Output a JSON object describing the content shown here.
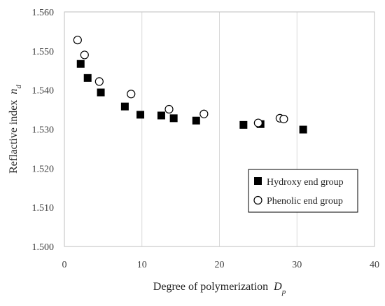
{
  "chart_data": {
    "type": "scatter",
    "title": "",
    "xlabel": "Degree of polymerization",
    "xlabel_sub": "p",
    "xlabel_var": "D",
    "ylabel": "Reflactive index",
    "ylabel_var": "n",
    "ylabel_sub": "d",
    "xlim": [
      0,
      40
    ],
    "ylim": [
      1.5,
      1.56
    ],
    "x_ticks": [
      0,
      10,
      20,
      30,
      40
    ],
    "x_tick_labels": [
      "0",
      "10",
      "20",
      "30",
      "40"
    ],
    "y_ticks": [
      1.5,
      1.51,
      1.52,
      1.53,
      1.54,
      1.55,
      1.56
    ],
    "y_tick_labels": [
      "1.500",
      "1.510",
      "1.520",
      "1.530",
      "1.540",
      "1.550",
      "1.560"
    ],
    "grid": "vertical",
    "legend_position": "bottom-right",
    "series": [
      {
        "name": "Hydroxy end group",
        "marker": "filled-square",
        "color": "#000000",
        "points": [
          {
            "x": 2.1,
            "y": 1.5467
          },
          {
            "x": 3.0,
            "y": 1.5431
          },
          {
            "x": 4.7,
            "y": 1.5394
          },
          {
            "x": 7.8,
            "y": 1.5358
          },
          {
            "x": 9.8,
            "y": 1.5337
          },
          {
            "x": 12.5,
            "y": 1.5335
          },
          {
            "x": 14.1,
            "y": 1.5328
          },
          {
            "x": 17.0,
            "y": 1.5322
          },
          {
            "x": 23.1,
            "y": 1.5311
          },
          {
            "x": 25.3,
            "y": 1.5313
          },
          {
            "x": 30.8,
            "y": 1.5299
          }
        ]
      },
      {
        "name": "Phenolic end group",
        "marker": "open-circle",
        "color": "#000000",
        "points": [
          {
            "x": 1.7,
            "y": 1.5528
          },
          {
            "x": 2.6,
            "y": 1.549
          },
          {
            "x": 4.5,
            "y": 1.5422
          },
          {
            "x": 8.6,
            "y": 1.539
          },
          {
            "x": 13.5,
            "y": 1.5351
          },
          {
            "x": 18.0,
            "y": 1.5339
          },
          {
            "x": 25.0,
            "y": 1.5316
          },
          {
            "x": 27.8,
            "y": 1.5328
          },
          {
            "x": 28.3,
            "y": 1.5326
          }
        ]
      }
    ]
  }
}
